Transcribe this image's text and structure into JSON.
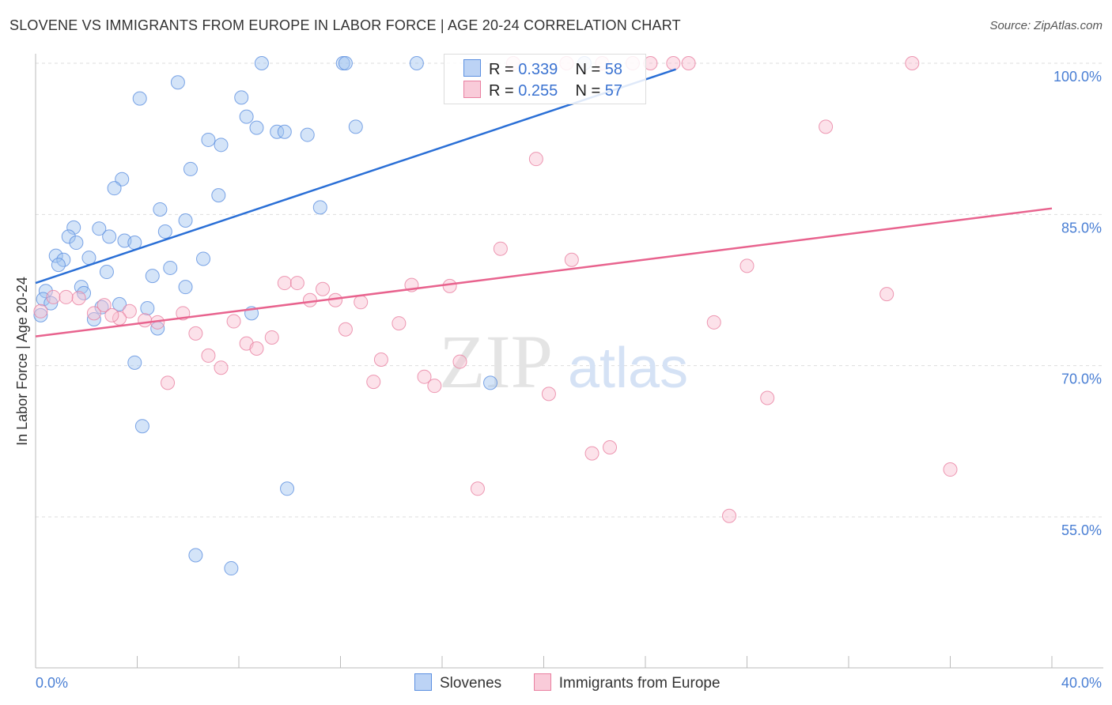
{
  "chart_data": {
    "type": "scatter",
    "title": "SLOVENE VS IMMIGRANTS FROM EUROPE IN LABOR FORCE | AGE 20-24 CORRELATION CHART",
    "source": "Source: ZipAtlas.com",
    "xlabel": "",
    "ylabel": "In Labor Force | Age 20-24",
    "xlim": [
      0,
      40
    ],
    "ylim": [
      40,
      100
    ],
    "x_tick_labels": [
      "0.0%",
      "40.0%"
    ],
    "y_ticks": [
      55,
      70,
      85,
      100
    ],
    "y_tick_labels": [
      "55.0%",
      "70.0%",
      "85.0%",
      "100.0%"
    ],
    "grid": true,
    "legend": {
      "position": "top-center",
      "items": [
        {
          "name": "Slovenes",
          "r_label": "R = ",
          "r": "0.339",
          "n_label": "N = ",
          "n": "58",
          "color": "#5b8fe0"
        },
        {
          "name": "Immigrants from Europe",
          "r_label": "R = ",
          "r": "0.255",
          "n_label": "N = ",
          "n": "57",
          "color": "#e97fa0"
        }
      ]
    },
    "watermark": "ZIPatlas",
    "series": [
      {
        "name": "Slovenes",
        "color": "#5b8fe0",
        "trend": [
          [
            0,
            78.2
          ],
          [
            25.2,
            99.4
          ]
        ],
        "points": [
          [
            8.9,
            100
          ],
          [
            12.1,
            100
          ],
          [
            12.2,
            100
          ],
          [
            15.0,
            100
          ],
          [
            21.6,
            100
          ],
          [
            5.6,
            98.1
          ],
          [
            4.1,
            96.5
          ],
          [
            8.1,
            96.6
          ],
          [
            8.3,
            94.7
          ],
          [
            8.7,
            93.6
          ],
          [
            9.5,
            93.2
          ],
          [
            9.8,
            93.2
          ],
          [
            10.7,
            92.9
          ],
          [
            12.6,
            93.7
          ],
          [
            6.8,
            92.4
          ],
          [
            7.3,
            91.9
          ],
          [
            6.1,
            89.5
          ],
          [
            3.4,
            88.5
          ],
          [
            3.1,
            87.6
          ],
          [
            7.2,
            86.9
          ],
          [
            11.2,
            85.7
          ],
          [
            4.9,
            85.5
          ],
          [
            5.9,
            84.4
          ],
          [
            1.5,
            83.7
          ],
          [
            2.5,
            83.6
          ],
          [
            5.1,
            83.3
          ],
          [
            1.3,
            82.8
          ],
          [
            2.9,
            82.8
          ],
          [
            3.5,
            82.4
          ],
          [
            3.9,
            82.2
          ],
          [
            1.6,
            82.2
          ],
          [
            0.8,
            80.9
          ],
          [
            1.1,
            80.5
          ],
          [
            2.1,
            80.7
          ],
          [
            6.6,
            80.6
          ],
          [
            0.9,
            80.0
          ],
          [
            5.3,
            79.7
          ],
          [
            2.8,
            79.3
          ],
          [
            4.6,
            78.9
          ],
          [
            0.4,
            77.4
          ],
          [
            0.3,
            76.6
          ],
          [
            5.9,
            77.8
          ],
          [
            1.8,
            77.8
          ],
          [
            1.9,
            77.2
          ],
          [
            0.6,
            76.2
          ],
          [
            3.3,
            76.1
          ],
          [
            2.6,
            75.8
          ],
          [
            4.4,
            75.7
          ],
          [
            8.5,
            75.2
          ],
          [
            2.3,
            74.6
          ],
          [
            4.8,
            73.7
          ],
          [
            0.2,
            75.0
          ],
          [
            3.9,
            70.3
          ],
          [
            17.9,
            68.3
          ],
          [
            4.2,
            64.0
          ],
          [
            9.9,
            57.8
          ],
          [
            6.3,
            51.2
          ],
          [
            7.7,
            49.9
          ]
        ]
      },
      {
        "name": "Immigrants from Europe",
        "color": "#e97fa0",
        "trend": [
          [
            0,
            72.9
          ],
          [
            40,
            85.6
          ]
        ],
        "points": [
          [
            18.8,
            100
          ],
          [
            20.9,
            100
          ],
          [
            22.3,
            100
          ],
          [
            23.5,
            100
          ],
          [
            24.2,
            100
          ],
          [
            25.1,
            100
          ],
          [
            25.7,
            100
          ],
          [
            34.5,
            100
          ],
          [
            31.1,
            93.7
          ],
          [
            19.7,
            90.5
          ],
          [
            18.3,
            81.6
          ],
          [
            21.1,
            80.5
          ],
          [
            28.0,
            79.9
          ],
          [
            9.8,
            78.2
          ],
          [
            10.3,
            78.2
          ],
          [
            11.3,
            77.6
          ],
          [
            14.8,
            78.0
          ],
          [
            16.3,
            77.9
          ],
          [
            33.5,
            77.1
          ],
          [
            10.8,
            76.5
          ],
          [
            11.8,
            76.5
          ],
          [
            12.8,
            76.3
          ],
          [
            3.7,
            75.4
          ],
          [
            5.8,
            75.2
          ],
          [
            2.3,
            75.2
          ],
          [
            3.3,
            74.7
          ],
          [
            4.3,
            74.5
          ],
          [
            4.8,
            74.3
          ],
          [
            7.8,
            74.4
          ],
          [
            14.3,
            74.2
          ],
          [
            26.7,
            74.3
          ],
          [
            6.3,
            73.2
          ],
          [
            12.2,
            73.6
          ],
          [
            9.3,
            72.8
          ],
          [
            8.3,
            72.2
          ],
          [
            8.7,
            71.7
          ],
          [
            6.8,
            71.0
          ],
          [
            13.6,
            70.6
          ],
          [
            16.7,
            70.4
          ],
          [
            7.3,
            69.8
          ],
          [
            15.3,
            68.9
          ],
          [
            13.3,
            68.4
          ],
          [
            5.2,
            68.3
          ],
          [
            15.7,
            68.0
          ],
          [
            20.2,
            67.2
          ],
          [
            28.8,
            66.8
          ],
          [
            22.6,
            61.9
          ],
          [
            21.9,
            61.3
          ],
          [
            36.0,
            59.7
          ],
          [
            17.4,
            57.8
          ],
          [
            27.3,
            55.1
          ],
          [
            0.7,
            76.8
          ],
          [
            1.7,
            76.7
          ],
          [
            1.2,
            76.8
          ],
          [
            0.2,
            75.4
          ],
          [
            2.7,
            76.0
          ],
          [
            3.0,
            75.0
          ]
        ]
      }
    ]
  },
  "bottom_legend": [
    "Slovenes",
    "Immigrants from Europe"
  ]
}
